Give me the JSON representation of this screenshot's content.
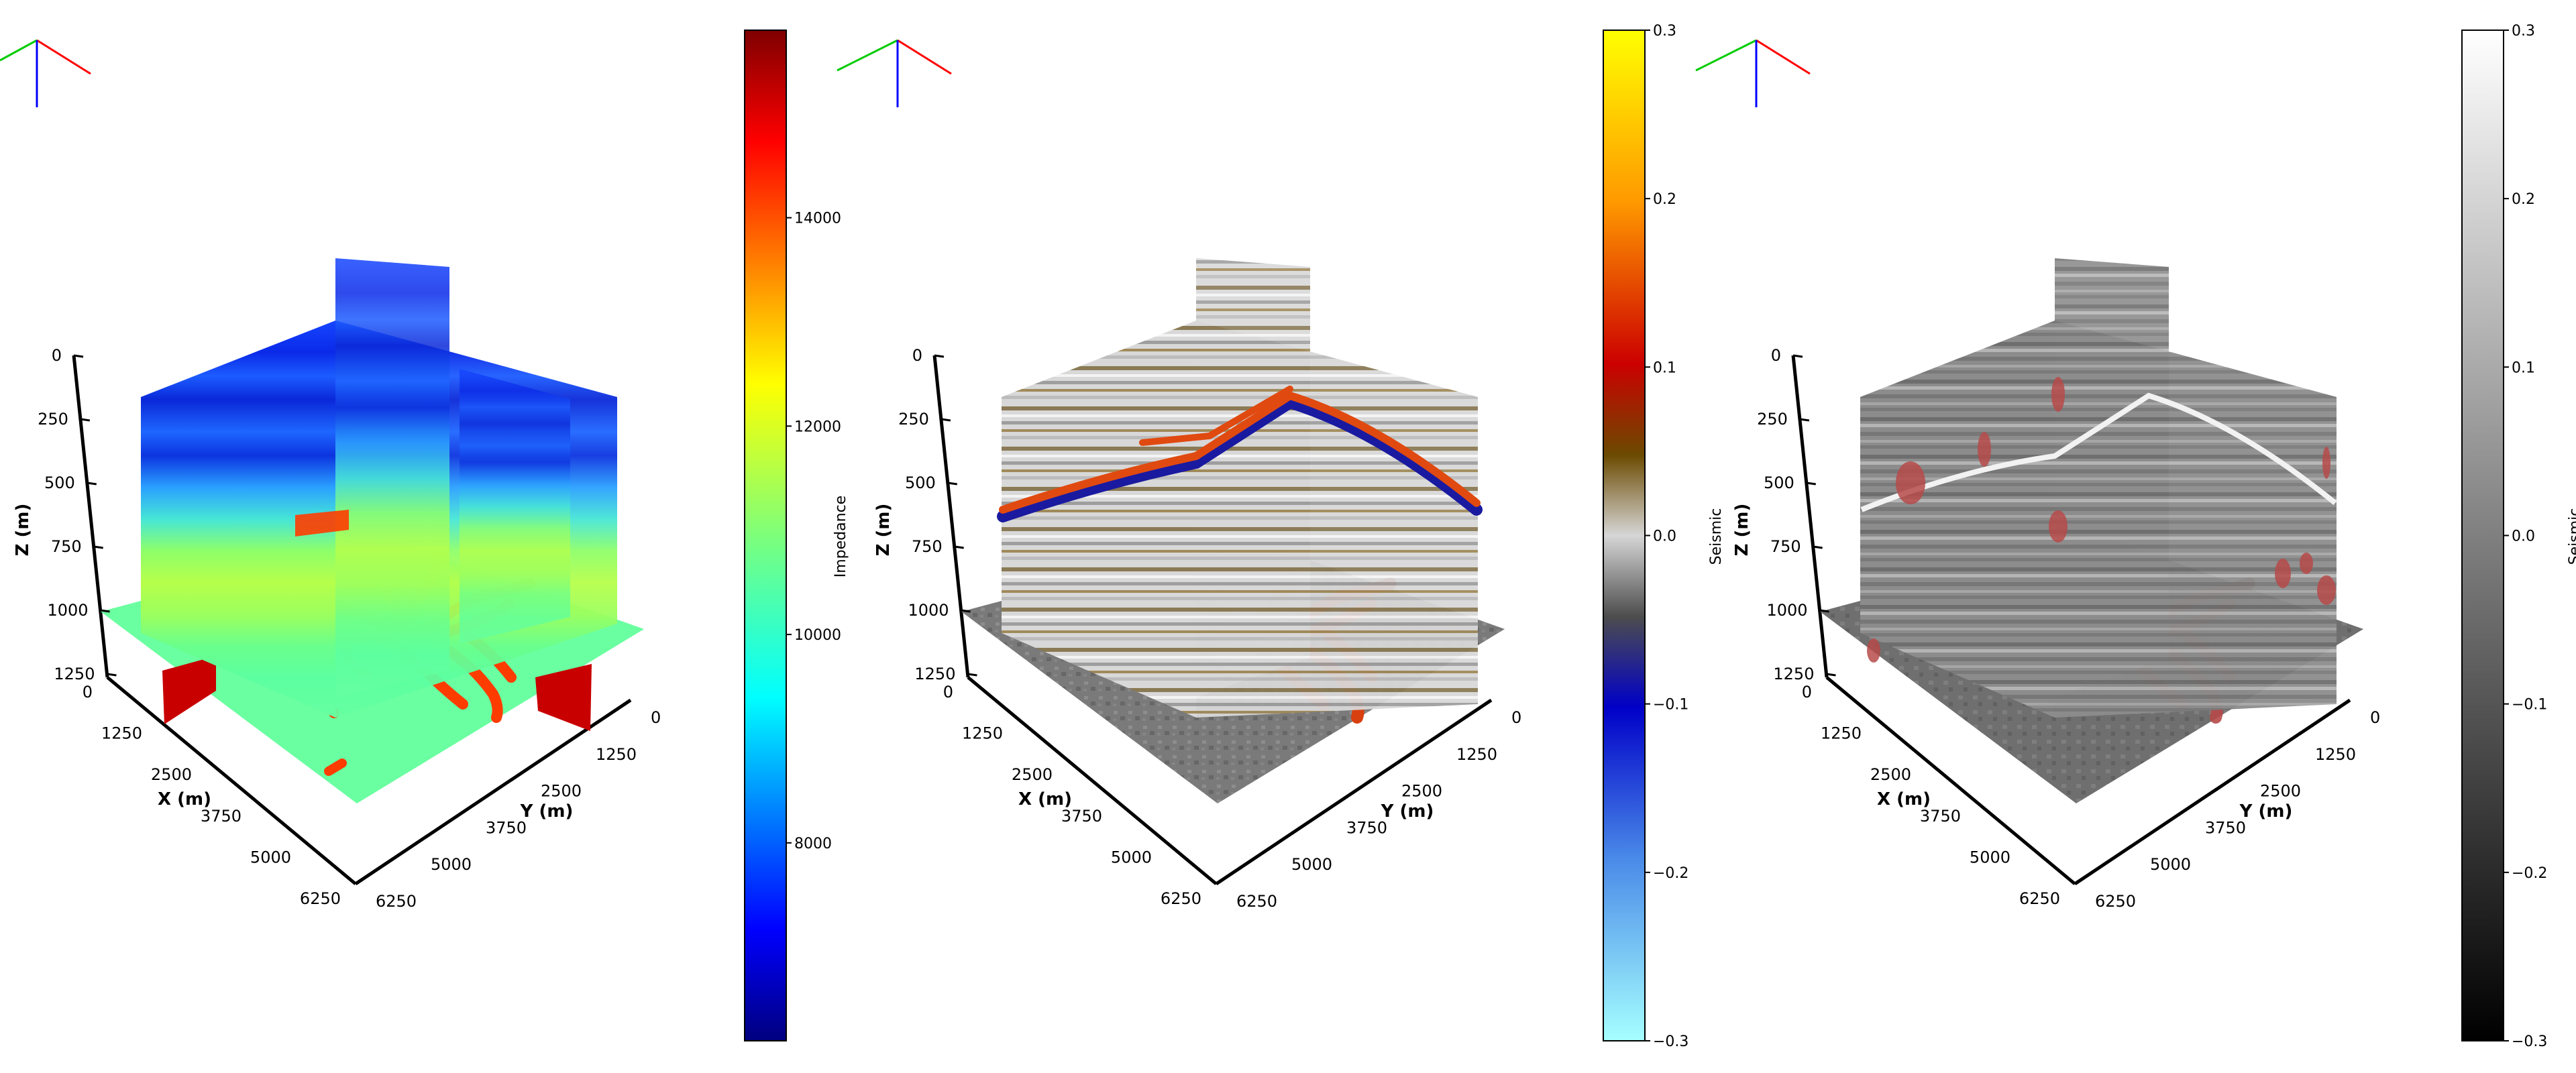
{
  "panels": [
    {
      "id": "impedance",
      "colormap": "jet",
      "colorbar": {
        "label": "Impedance",
        "ticks": [
          "8000",
          "10000",
          "12000",
          "14000"
        ],
        "tick_values": [
          8000,
          10000,
          12000,
          14000
        ],
        "vmin": 6100,
        "vmax": 15800
      },
      "slice_style": "impedance"
    },
    {
      "id": "seismic-channel",
      "colormap": "seismic-yellow-cyan",
      "colorbar": {
        "label": "Seismic",
        "ticks": [
          "−0.3",
          "−0.2",
          "−0.1",
          "0.0",
          "0.1",
          "0.2",
          "0.3"
        ],
        "tick_values": [
          -0.3,
          -0.2,
          -0.1,
          0.0,
          0.1,
          0.2,
          0.3
        ],
        "vmin": -0.3,
        "vmax": 0.3
      },
      "slice_style": "seismic-color"
    },
    {
      "id": "seismic-gray",
      "colormap": "gray",
      "colorbar": {
        "label": "Seismic",
        "ticks": [
          "−0.3",
          "−0.2",
          "−0.1",
          "0.0",
          "0.1",
          "0.2",
          "0.3"
        ],
        "tick_values": [
          -0.3,
          -0.2,
          -0.1,
          0.0,
          0.1,
          0.2,
          0.3
        ],
        "vmin": -0.3,
        "vmax": 0.3
      },
      "slice_style": "seismic-gray"
    }
  ],
  "axes": {
    "x_label": "X (m)",
    "y_label": "Y (m)",
    "z_label": "Z (m)",
    "x_ticks": [
      "0",
      "1250",
      "2500",
      "3750",
      "5000",
      "6250"
    ],
    "y_ticks": [
      "0",
      "1250",
      "2500",
      "3750",
      "5000",
      "6250"
    ],
    "z_ticks": [
      "0",
      "250",
      "500",
      "750",
      "1000",
      "1250"
    ]
  },
  "orientation_triad_colors": {
    "x": "#ff0000",
    "y": "#00cc00",
    "z": "#0000ff"
  }
}
